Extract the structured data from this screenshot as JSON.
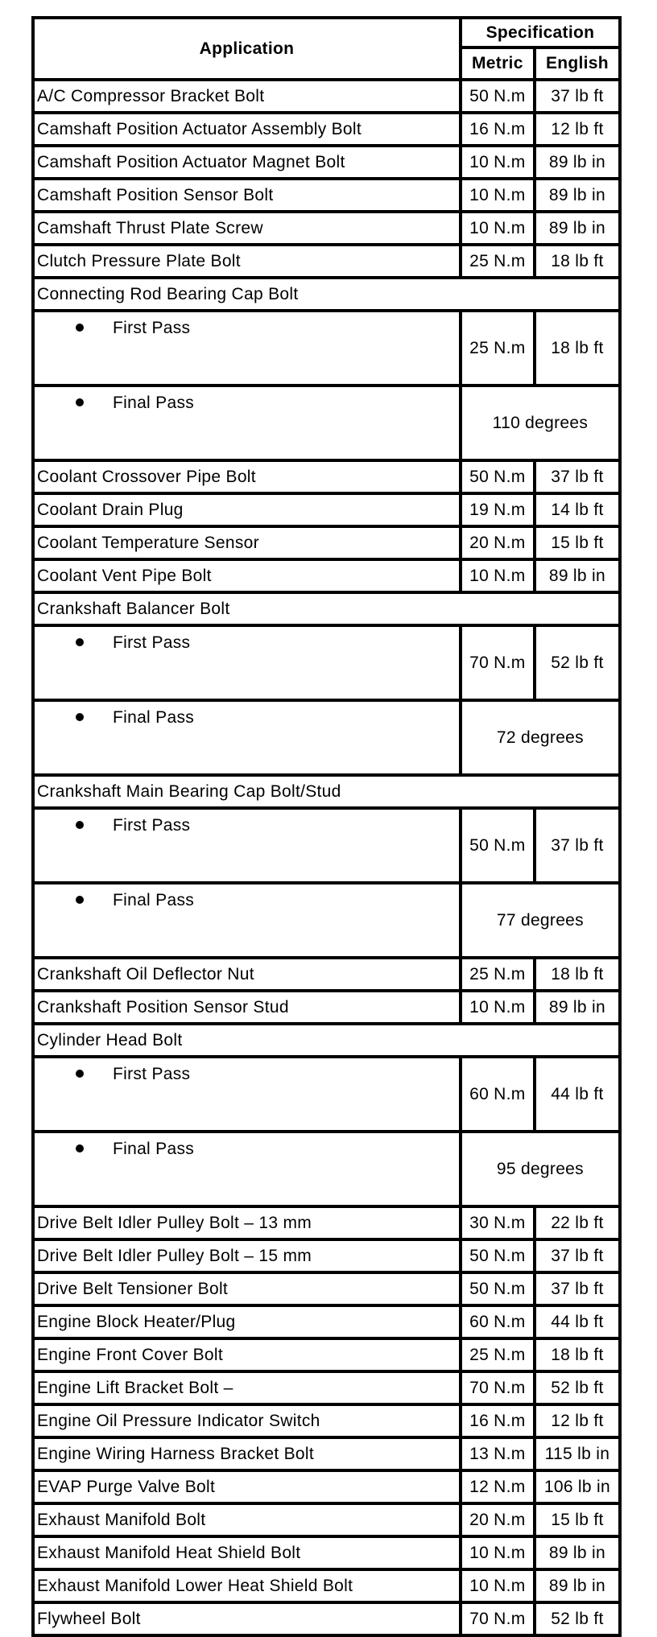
{
  "header": {
    "application": "Application",
    "specification": "Specification",
    "metric": "Metric",
    "english": "English"
  },
  "rows": [
    {
      "type": "row",
      "app": "A/C Compressor Bracket Bolt",
      "metric": "50 N.m",
      "english": "37 lb ft"
    },
    {
      "type": "row",
      "app": "Camshaft Position Actuator Assembly Bolt",
      "metric": "16 N.m",
      "english": "12 lb ft"
    },
    {
      "type": "row",
      "app": "Camshaft Position Actuator Magnet Bolt",
      "metric": "10 N.m",
      "english": "89 lb in"
    },
    {
      "type": "row",
      "app": "Camshaft Position Sensor Bolt",
      "metric": "10 N.m",
      "english": "89 lb in"
    },
    {
      "type": "row",
      "app": "Camshaft Thrust Plate Screw",
      "metric": "10 N.m",
      "english": "89 lb in"
    },
    {
      "type": "row",
      "app": "Clutch Pressure Plate Bolt",
      "metric": "25 N.m",
      "english": "18 lb ft"
    },
    {
      "type": "group",
      "app": "Connecting Rod Bearing Cap Bolt"
    },
    {
      "type": "pass",
      "app": "First Pass",
      "metric": "25 N.m",
      "english": "18 lb ft"
    },
    {
      "type": "pass",
      "app": "Final Pass",
      "angle": "110 degrees"
    },
    {
      "type": "row",
      "app": "Coolant Crossover Pipe Bolt",
      "metric": "50 N.m",
      "english": "37 lb ft"
    },
    {
      "type": "row",
      "app": "Coolant Drain Plug",
      "metric": "19 N.m",
      "english": "14 lb ft"
    },
    {
      "type": "row",
      "app": "Coolant Temperature Sensor",
      "metric": "20 N.m",
      "english": "15 lb ft"
    },
    {
      "type": "row",
      "app": "Coolant Vent Pipe Bolt",
      "metric": "10 N.m",
      "english": "89 lb in"
    },
    {
      "type": "group",
      "app": "Crankshaft Balancer Bolt"
    },
    {
      "type": "pass",
      "app": "First Pass",
      "metric": "70 N.m",
      "english": "52 lb ft"
    },
    {
      "type": "pass",
      "app": "Final Pass",
      "angle": "72 degrees"
    },
    {
      "type": "group",
      "app": "Crankshaft Main Bearing Cap Bolt/Stud"
    },
    {
      "type": "pass",
      "app": "First Pass",
      "metric": "50 N.m",
      "english": "37 lb ft"
    },
    {
      "type": "pass",
      "app": "Final Pass",
      "angle": "77 degrees"
    },
    {
      "type": "row",
      "app": "Crankshaft Oil Deflector Nut",
      "metric": "25 N.m",
      "english": "18 lb ft"
    },
    {
      "type": "row",
      "app": "Crankshaft Position Sensor Stud",
      "metric": "10 N.m",
      "english": "89 lb in"
    },
    {
      "type": "group",
      "app": "Cylinder Head Bolt"
    },
    {
      "type": "pass",
      "app": "First Pass",
      "metric": "60 N.m",
      "english": "44 lb ft"
    },
    {
      "type": "pass",
      "app": "Final Pass",
      "angle": "95 degrees"
    },
    {
      "type": "row",
      "app": "Drive Belt Idler Pulley Bolt – 13 mm",
      "metric": "30 N.m",
      "english": "22 lb ft"
    },
    {
      "type": "row",
      "app": "Drive Belt Idler Pulley Bolt – 15 mm",
      "metric": "50 N.m",
      "english": "37 lb ft"
    },
    {
      "type": "row",
      "app": "Drive Belt Tensioner Bolt",
      "metric": "50 N.m",
      "english": "37 lb ft"
    },
    {
      "type": "row",
      "app": "Engine Block Heater/Plug",
      "metric": "60 N.m",
      "english": "44 lb ft"
    },
    {
      "type": "row",
      "app": "Engine Front Cover Bolt",
      "metric": "25 N.m",
      "english": "18 lb ft"
    },
    {
      "type": "row",
      "app": "Engine Lift Bracket Bolt –",
      "metric": "70 N.m",
      "english": "52 lb ft"
    },
    {
      "type": "row",
      "app": "Engine Oil Pressure Indicator Switch",
      "metric": "16 N.m",
      "english": "12 lb ft"
    },
    {
      "type": "row",
      "app": "Engine Wiring Harness Bracket Bolt",
      "metric": "13 N.m",
      "english": "115 lb in"
    },
    {
      "type": "row",
      "app": "EVAP Purge Valve Bolt",
      "metric": "12 N.m",
      "english": "106 lb in"
    },
    {
      "type": "row",
      "app": "Exhaust Manifold Bolt",
      "metric": "20 N.m",
      "english": "15 lb ft"
    },
    {
      "type": "row",
      "app": "Exhaust Manifold Heat Shield Bolt",
      "metric": "10 N.m",
      "english": "89 lb in"
    },
    {
      "type": "row",
      "app": "Exhaust Manifold Lower Heat Shield Bolt",
      "metric": "10 N.m",
      "english": "89 lb in"
    },
    {
      "type": "row",
      "app": "Flywheel Bolt",
      "metric": "70 N.m",
      "english": "52 lb ft"
    }
  ]
}
